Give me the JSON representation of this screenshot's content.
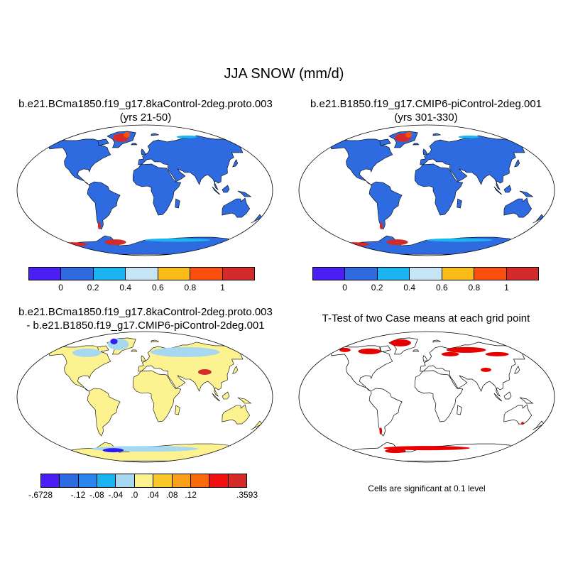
{
  "title": "JJA SNOW (mm/d)",
  "panels": {
    "case1": {
      "line1": "b.e21.BCma1850.f19_g17.8kaControl-2deg.proto.003",
      "line2": "(yrs 21-50)"
    },
    "case2": {
      "line1": "b.e21.B1850.f19_g17.CMIP6-piControl-2deg.001",
      "line2": "(yrs 301-330)"
    },
    "diff": {
      "line1": "b.e21.BCma1850.f19_g17.8kaControl-2deg.proto.003",
      "line2": "- b.e21.B1850.f19_g17.CMIP6-piControl-2deg.001"
    },
    "ttest": {
      "title": "T-Test of two Case means at each grid point",
      "note": "Cells are significant at 0.1 level"
    }
  },
  "colorbars": {
    "mean": {
      "colors": [
        "#4a1ef5",
        "#2e6ae0",
        "#1ab4f0",
        "#c6e6f8",
        "#fbbc18",
        "#fa4f0d",
        "#d42a2a"
      ],
      "labels": [
        "0",
        "0.2",
        "0.4",
        "0.6",
        "0.8",
        "1"
      ]
    },
    "diff": {
      "colors": [
        "#4a1ef5",
        "#2e6ae0",
        "#2a86ec",
        "#1ab4f0",
        "#a6d8f2",
        "#fcf290",
        "#fbc82b",
        "#fba01a",
        "#fb6a0a",
        "#f10f0f",
        "#d42a2a"
      ],
      "labels": [
        "-.6728",
        "-.12",
        "-.08",
        "-.04",
        ".0",
        ".04",
        ".08",
        ".12",
        ".3593"
      ],
      "label_index": [
        0,
        2,
        3,
        4,
        5,
        6,
        7,
        8,
        11
      ]
    }
  },
  "map_colors": {
    "land_mean": "#2e6ae0",
    "snow_high": "#d42a2a",
    "snow_mid": "#fa4f0d",
    "snow_light": "#1ab4f0",
    "land_diff": "#fcf290",
    "diff_neg": "#a6d8f2",
    "diff_neg_strong": "#2e1ef5",
    "ttest_sig": "#e60000"
  }
}
